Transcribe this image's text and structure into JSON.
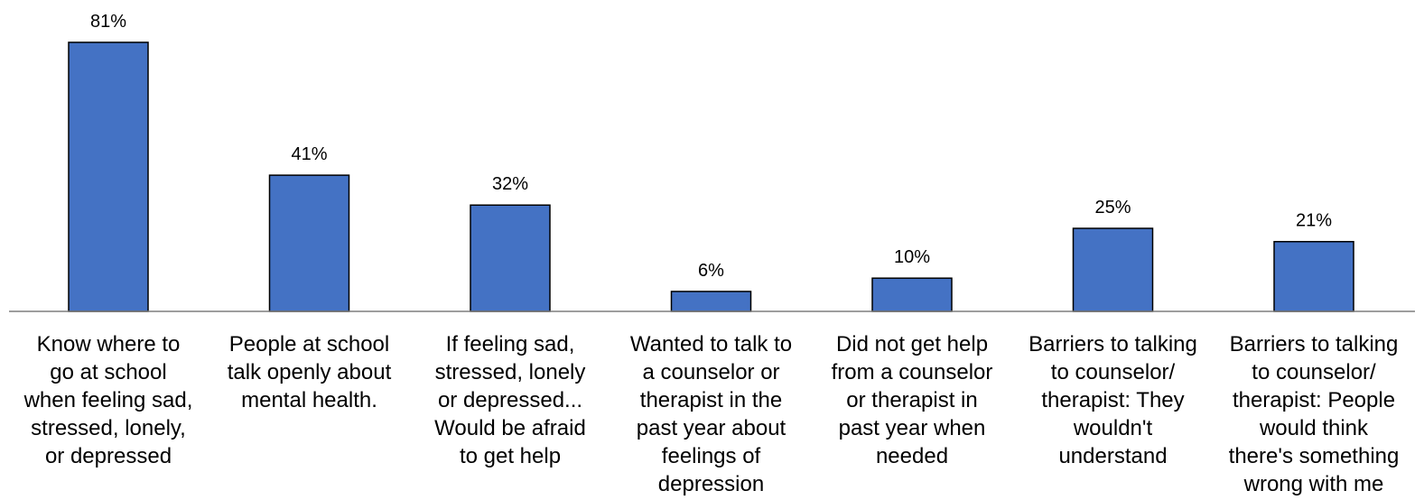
{
  "chart_data": {
    "type": "bar",
    "categories": [
      "Know where to go at school when feeling sad, stressed, lonely, or depressed",
      "People at school talk openly about mental health.",
      "If feeling sad, stressed, lonely or depressed... Would be afraid to get help",
      "Wanted to talk to a counselor or therapist in the past year about feelings of depression",
      "Did not get help from a counselor or therapist in past year when needed",
      "Barriers to talking to counselor/ therapist: They wouldn't understand",
      "Barriers to talking to counselor/ therapist: People would think there's something wrong with me"
    ],
    "category_lines": [
      [
        "Know where to",
        "go at school",
        "when feeling sad,",
        "stressed, lonely,",
        "or depressed"
      ],
      [
        "People at school",
        "talk openly about",
        "mental health."
      ],
      [
        "If feeling sad,",
        "stressed, lonely",
        "or depressed...",
        "Would be afraid",
        "to get help"
      ],
      [
        "Wanted to talk to",
        "a counselor or",
        "therapist in the",
        "past year about",
        "feelings of",
        "depression"
      ],
      [
        "Did not get help",
        "from a counselor",
        "or therapist in",
        "past year when",
        "needed"
      ],
      [
        "Barriers to talking",
        "to counselor/",
        "therapist: They",
        "wouldn't",
        "understand"
      ],
      [
        "Barriers to talking",
        "to counselor/",
        "therapist: People",
        "would think",
        "there's something",
        "wrong with me"
      ]
    ],
    "values": [
      81,
      41,
      32,
      6,
      10,
      25,
      21
    ],
    "value_labels": [
      "81%",
      "41%",
      "32%",
      "6%",
      "10%",
      "25%",
      "21%"
    ],
    "unit": "%",
    "bar_color": "#4472C4",
    "ylim": [
      0,
      100
    ],
    "grid": false,
    "legend": "none",
    "title": "",
    "xlabel": "",
    "ylabel": ""
  }
}
